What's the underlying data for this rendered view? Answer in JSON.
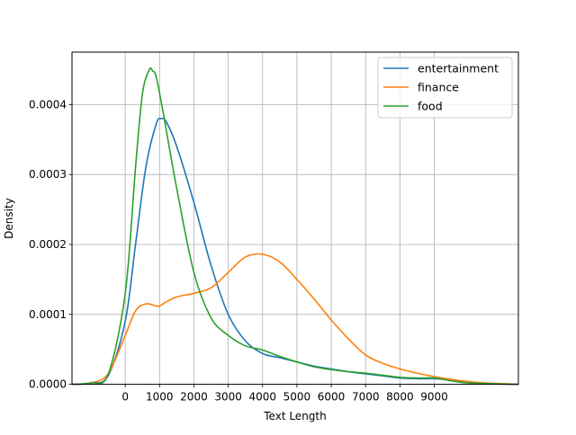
{
  "chart_data": {
    "type": "line",
    "title": "",
    "xlabel": "Text Length",
    "ylabel": "Density",
    "xlim": [
      -1550,
      11450
    ],
    "ylim": [
      0,
      0.000475
    ],
    "grid": true,
    "legend_position": "top-right",
    "x_ticks": [
      0,
      1000,
      2000,
      3000,
      4000,
      5000,
      6000,
      7000,
      8000,
      9000
    ],
    "x_tick_labels": [
      "0",
      "1000",
      "2000",
      "3000",
      "4000",
      "5000",
      "6000",
      "7000",
      "8000",
      "9000"
    ],
    "y_ticks": [
      0,
      0.0001,
      0.0002,
      0.0003,
      0.0004
    ],
    "y_tick_labels": [
      "0.0000",
      "0.0001",
      "0.0002",
      "0.0003",
      "0.0004"
    ],
    "series": [
      {
        "name": "entertainment",
        "color": "#1f77b4",
        "x": [
          -1550,
          -1000,
          -500,
          0,
          300,
          600,
          900,
          1050,
          1200,
          1500,
          2000,
          2500,
          3000,
          3500,
          4000,
          4500,
          5000,
          5500,
          6000,
          6500,
          7000,
          7500,
          8000,
          8500,
          9000,
          9500,
          10000,
          10500,
          11450
        ],
        "y": [
          0.0,
          2e-06,
          1.2e-05,
          9e-05,
          0.0002,
          0.00031,
          0.000372,
          0.00038,
          0.000375,
          0.00034,
          0.00026,
          0.00017,
          0.0001,
          6.2e-05,
          4.4e-05,
          3.8e-05,
          3.2e-05,
          2.6e-05,
          2.2e-05,
          1.8e-05,
          1.5e-05,
          1.2e-05,
          9e-06,
          8e-06,
          8e-06,
          6e-06,
          3e-06,
          1e-06,
          0.0
        ]
      },
      {
        "name": "finance",
        "color": "#ff7f0e",
        "x": [
          -1550,
          -1000,
          -500,
          0,
          300,
          600,
          900,
          1000,
          1200,
          1500,
          2000,
          2500,
          3000,
          3500,
          4000,
          4500,
          5000,
          5500,
          6000,
          6500,
          7000,
          7500,
          8000,
          8500,
          9000,
          9500,
          10000,
          10500,
          11450
        ],
        "y": [
          0.0,
          2e-06,
          1.5e-05,
          7e-05,
          0.000105,
          0.000115,
          0.000112,
          0.000112,
          0.000118,
          0.000125,
          0.00013,
          0.000138,
          0.00016,
          0.000182,
          0.000186,
          0.000175,
          0.00015,
          0.000122,
          9.2e-05,
          6.5e-05,
          4.2e-05,
          3e-05,
          2.2e-05,
          1.6e-05,
          1.1e-05,
          7e-06,
          4e-06,
          2e-06,
          0.0
        ]
      },
      {
        "name": "food",
        "color": "#2ca02c",
        "x": [
          -1550,
          -1000,
          -500,
          0,
          300,
          500,
          700,
          800,
          900,
          1100,
          1500,
          2000,
          2500,
          3000,
          3500,
          4000,
          4500,
          5000,
          5500,
          6000,
          6500,
          7000,
          7500,
          8000,
          8500,
          9000,
          9500,
          10000,
          11450
        ],
        "y": [
          0.0,
          2e-06,
          1.4e-05,
          0.00013,
          0.00031,
          0.000415,
          0.00045,
          0.000448,
          0.00044,
          0.00039,
          0.00028,
          0.00016,
          9.5e-05,
          7e-05,
          5.5e-05,
          4.9e-05,
          4e-05,
          3.2e-05,
          2.5e-05,
          2.1e-05,
          1.8e-05,
          1.6e-05,
          1.3e-05,
          1e-05,
          9e-06,
          9e-06,
          5e-06,
          2e-06,
          0.0
        ]
      }
    ]
  }
}
